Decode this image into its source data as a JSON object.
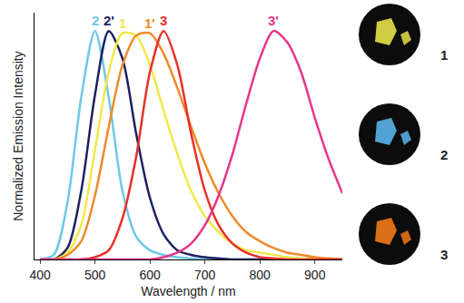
{
  "chart_data": {
    "type": "line",
    "xlabel": "Wavelength / nm",
    "ylabel": "Normalized Emission Intensity",
    "x": [
      400,
      425,
      450,
      475,
      500,
      525,
      550,
      575,
      600,
      625,
      650,
      675,
      700,
      725,
      750,
      775,
      800,
      825,
      850,
      875,
      900,
      925,
      950
    ],
    "series": [
      {
        "name": "2",
        "color": "#6ec8e8",
        "values": [
          0,
          0.02,
          0.25,
          0.71,
          1.0,
          0.71,
          0.3,
          0.1,
          0.04,
          0.02,
          0.01,
          0.005,
          0,
          0,
          0,
          0,
          0,
          0,
          0,
          0,
          0,
          0,
          0
        ]
      },
      {
        "name": "2'",
        "color": "#1c2260",
        "values": [
          0,
          0,
          0.05,
          0.3,
          0.72,
          1.0,
          0.88,
          0.55,
          0.27,
          0.11,
          0.04,
          0.02,
          0.01,
          0.005,
          0,
          0,
          0,
          0,
          0,
          0,
          0,
          0,
          0
        ]
      },
      {
        "name": "1",
        "color": "#f2e84a",
        "values": [
          0,
          0,
          0.03,
          0.15,
          0.48,
          0.82,
          0.99,
          0.98,
          0.85,
          0.65,
          0.46,
          0.3,
          0.19,
          0.12,
          0.07,
          0.04,
          0.03,
          0.02,
          0.01,
          0.005,
          0,
          0,
          0
        ]
      },
      {
        "name": "1'",
        "color": "#f08a2a",
        "values": [
          0,
          0,
          0.02,
          0.08,
          0.28,
          0.58,
          0.85,
          0.98,
          0.99,
          0.9,
          0.75,
          0.58,
          0.42,
          0.29,
          0.19,
          0.12,
          0.08,
          0.05,
          0.03,
          0.02,
          0.01,
          0.005,
          0
        ]
      },
      {
        "name": "3",
        "color": "#e8302a",
        "values": [
          0,
          0,
          0,
          0,
          0.01,
          0.04,
          0.18,
          0.45,
          0.82,
          1.0,
          0.85,
          0.55,
          0.3,
          0.15,
          0.07,
          0.03,
          0.01,
          0.005,
          0,
          0,
          0,
          0,
          0
        ]
      },
      {
        "name": "3'",
        "color": "#e8348a",
        "values": [
          0,
          0,
          0,
          0,
          0,
          0,
          0,
          0,
          0,
          0.01,
          0.03,
          0.07,
          0.15,
          0.28,
          0.46,
          0.68,
          0.88,
          1.0,
          0.95,
          0.82,
          0.62,
          0.44,
          0.29
        ]
      }
    ],
    "xlim": [
      390,
      950
    ],
    "xticks": [
      400,
      500,
      600,
      700,
      800,
      900
    ],
    "ylim": [
      0,
      1.08
    ],
    "tick_labels": "x",
    "grid": false
  },
  "photos": [
    {
      "label": "1",
      "color": "#e6e24a"
    },
    {
      "label": "2",
      "color": "#5ab4ea"
    },
    {
      "label": "3",
      "color": "#f07a1a"
    }
  ]
}
